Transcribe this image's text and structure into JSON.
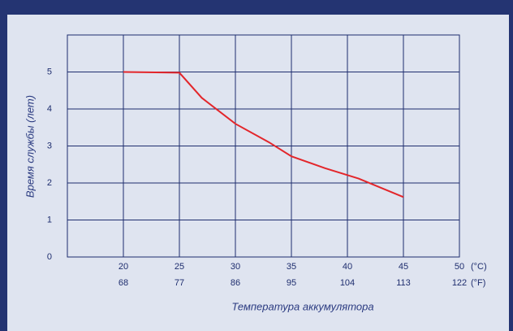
{
  "chart_data": {
    "type": "line",
    "xlabel": "Температура аккумулятора",
    "ylabel": "Время службы (лет)",
    "x_unit": "(°C)",
    "x2_unit": "(°F)",
    "x": [
      20,
      25,
      27,
      30,
      33,
      35,
      38,
      41,
      45
    ],
    "series": [
      {
        "name": "Время службы",
        "color": "#e3262b",
        "values": [
          5,
          4.98,
          4.3,
          3.6,
          3.1,
          2.72,
          2.4,
          2.12,
          1.62
        ]
      }
    ],
    "xlim": [
      15,
      50
    ],
    "xticks": [
      20,
      25,
      30,
      35,
      40,
      45,
      50
    ],
    "x2ticks": [
      68,
      77,
      86,
      95,
      104,
      113,
      122
    ],
    "ylim": [
      0,
      6
    ],
    "yticks": [
      0,
      1,
      2,
      3,
      4,
      5
    ],
    "grid": true,
    "legend": false
  }
}
